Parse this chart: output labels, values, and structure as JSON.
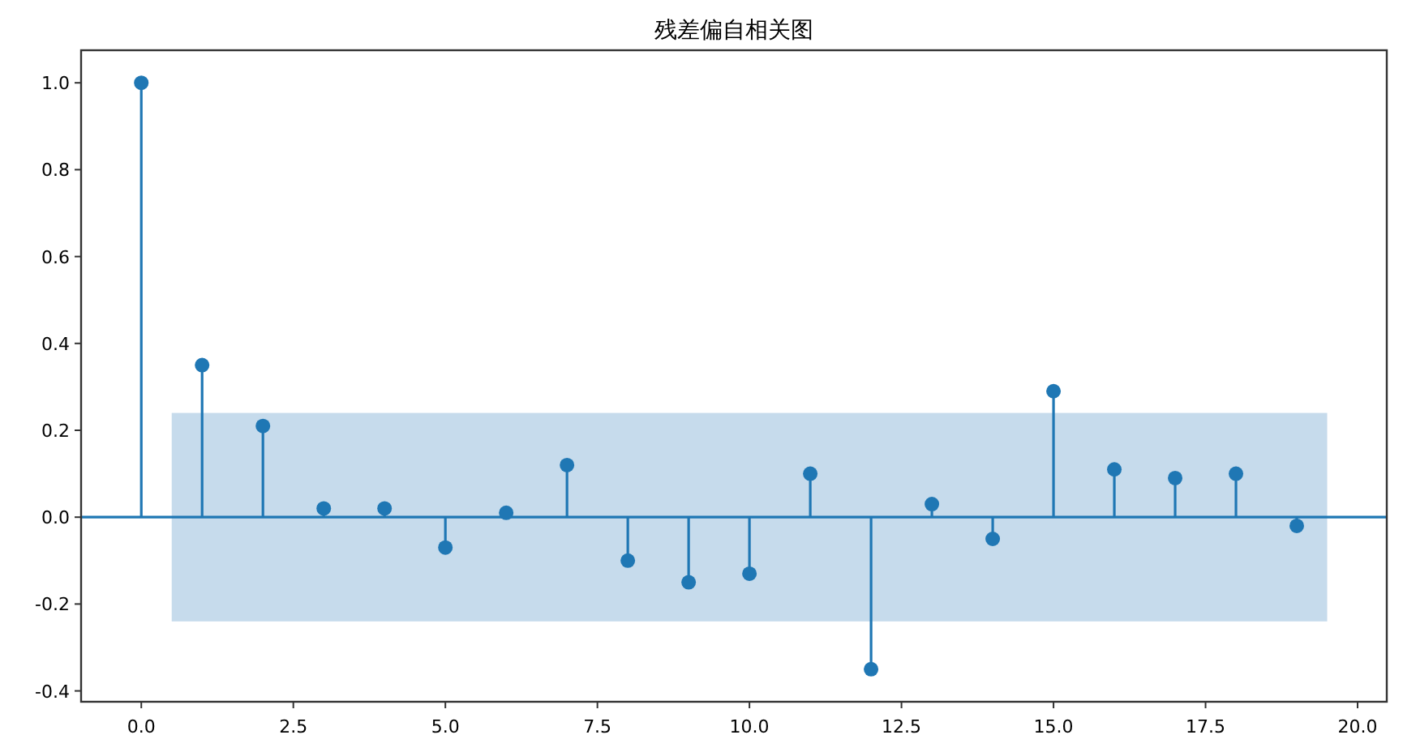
{
  "chart_data": {
    "type": "lollipop",
    "title": "残差偏自相关图",
    "x": [
      0,
      1,
      2,
      3,
      4,
      5,
      6,
      7,
      8,
      9,
      10,
      11,
      12,
      13,
      14,
      15,
      16,
      17,
      18,
      19
    ],
    "values": [
      1.0,
      0.35,
      0.21,
      0.02,
      0.02,
      -0.07,
      0.01,
      0.12,
      -0.1,
      -0.15,
      -0.13,
      0.1,
      -0.35,
      0.03,
      -0.05,
      0.29,
      0.11,
      0.09,
      0.1,
      -0.02
    ],
    "color": "#1f77b4",
    "marker": "circle",
    "xlim": [
      -0.99,
      20.48
    ],
    "ylim": [
      -0.425,
      1.075
    ],
    "xticks": [
      {
        "value": 0,
        "label": "0.0"
      },
      {
        "value": 2.5,
        "label": "2.5"
      },
      {
        "value": 5,
        "label": "5.0"
      },
      {
        "value": 7.5,
        "label": "7.5"
      },
      {
        "value": 10,
        "label": "10.0"
      },
      {
        "value": 12.5,
        "label": "12.5"
      },
      {
        "value": 15,
        "label": "15.0"
      },
      {
        "value": 17.5,
        "label": "17.5"
      },
      {
        "value": 20,
        "label": "20.0"
      }
    ],
    "yticks": [
      {
        "value": -0.4,
        "label": "-0.4"
      },
      {
        "value": -0.2,
        "label": "-0.2"
      },
      {
        "value": 0,
        "label": "0.0"
      },
      {
        "value": 0.2,
        "label": "0.2"
      },
      {
        "value": 0.4,
        "label": "0.4"
      },
      {
        "value": 0.6,
        "label": "0.6"
      },
      {
        "value": 0.8,
        "label": "0.8"
      },
      {
        "value": 1.0,
        "label": "1.0"
      }
    ],
    "bands": [
      {
        "axis": "y",
        "from": -0.24,
        "to": 0.24,
        "color": "#c6dbec"
      }
    ],
    "ref_lines": [
      {
        "axis": "y",
        "value": 0,
        "color": "#1f77b4"
      }
    ],
    "grid": false
  }
}
